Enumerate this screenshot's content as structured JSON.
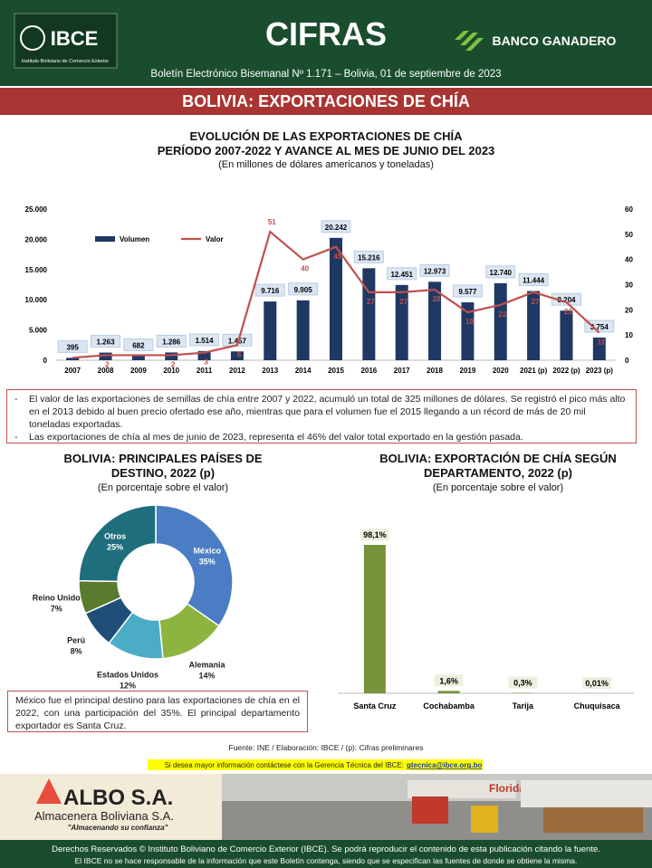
{
  "header": {
    "logo": "IBCE",
    "logo_caption": "Instituto Boliviano de Comercio Exterior",
    "title": "CIFRAS",
    "sponsor": "BANCO GANADERO",
    "subtitle": "Boletín Electrónico Bisemanal Nº 1.171 – Bolivia, 01 de septiembre de 2023",
    "banner": "BOLIVIA: EXPORTACIONES DE CHÍA"
  },
  "chart_data": [
    {
      "type": "combo",
      "title": [
        "EVOLUCIÓN DE LAS EXPORTACIONES DE CHÍA",
        "PERÍODO 2007-2022 Y AVANCE AL MES DE JUNIO DEL 2023"
      ],
      "subtitle": "(En millones de dólares americanos y toneladas)",
      "categories": [
        "2007",
        "2008",
        "2009",
        "2010",
        "2011",
        "2012",
        "2013",
        "2014",
        "2015",
        "2016",
        "2017",
        "2018",
        "2019",
        "2020",
        "2021 (p)",
        "2022 (p)",
        "2023 (p)"
      ],
      "series": [
        {
          "name": "Volumen",
          "color": "#1f3864",
          "kind": "bar",
          "values": [
            395,
            1263,
            682,
            1286,
            1514,
            1457,
            9716,
            9905,
            20242,
            15216,
            12451,
            12973,
            9577,
            12740,
            11444,
            8204,
            3754
          ],
          "value_labels": [
            "395",
            "1.263",
            "682",
            "1.286",
            "1.514",
            "1.457",
            "9.716",
            "9.905",
            "20.242",
            "15.216",
            "12.451",
            "12.973",
            "9.577",
            "12.740",
            "11.444",
            "8.204",
            "3.754"
          ]
        },
        {
          "name": "Valor",
          "color": "#c0504d",
          "kind": "line",
          "axis": "y2",
          "values": [
            1,
            2,
            2,
            2,
            3,
            6,
            51,
            40,
            45,
            27,
            27,
            28,
            19,
            22,
            27,
            23,
            11
          ],
          "value_labels": [
            null,
            "2",
            null,
            "2",
            "3",
            "6",
            "51",
            "40",
            "45",
            "27",
            "27",
            "28",
            "19",
            "22",
            "27",
            "23",
            "11"
          ]
        }
      ],
      "ylim": [
        0,
        25000
      ],
      "yticks": [
        0,
        {
          "value": 5000,
          "label": "5.000"
        },
        {
          "value": 10000,
          "label": "10.000"
        },
        {
          "value": 15000,
          "label": "15.000"
        },
        {
          "value": 20000,
          "label": "20.000"
        },
        {
          "value": 25000,
          "label": "25.000"
        }
      ],
      "y2lim": [
        0,
        60
      ],
      "y2ticks": [
        0,
        10,
        20,
        30,
        40,
        50,
        60
      ],
      "legend": "top-left"
    },
    {
      "type": "donut",
      "title": "BOLIVIA: PRINCIPALES PAÍSES DE DESTINO, 2022 (p)",
      "subtitle": "(En porcentaje sobre el valor)",
      "categories": [
        "México",
        "Alemania",
        "Estados Unidos",
        "Perú",
        "Reino Unido",
        "Otros"
      ],
      "values": [
        35,
        14,
        12,
        8,
        7,
        25
      ],
      "value_labels": [
        "35%",
        "14%",
        "12%",
        "8%",
        "7%",
        "25%"
      ],
      "colors": [
        "#4a7dc4",
        "#8db43e",
        "#4bacc6",
        "#1f4e79",
        "#5a7a2e",
        "#1f6e7e"
      ]
    },
    {
      "type": "bar",
      "title": "BOLIVIA: EXPORTACIÓN DE CHÍA SEGÚN DEPARTAMENTO, 2022 (p)",
      "subtitle": "(En porcentaje sobre el valor)",
      "categories": [
        "Santa Cruz",
        "Cochabamba",
        "Tarija",
        "Chuquisaca"
      ],
      "values": [
        98.1,
        1.6,
        0.3,
        0.01
      ],
      "value_labels": [
        "98,1%",
        "1,6%",
        "0,3%",
        "0,01%"
      ],
      "color": "#77933c"
    }
  ],
  "notes": [
    "El valor de las exportaciones de semillas de chía entre 2007 y 2022, acumuló un total de 325 millones de dólares. Se registró el pico más alto en el 2013 debido al buen precio ofertado ese año, mientras que para el volumen fue el 2015 llegando a un récord de más de 20 mil toneladas exportadas.",
    "Las exportaciones de chía al mes de junio de 2023, representa el 46% del valor total exportado en la gestión pasada."
  ],
  "summary": "México fue el principal destino para las exportaciones de chía en el 2022, con una participación del 35%. El principal departamento exportador es Santa Cruz.",
  "source": "Fuente: INE / Elaboración: IBCE / (p): Cifras preliminares",
  "contact": {
    "text": "Si desea mayor información contáctese con la Gerencia Técnica del IBCE:",
    "email": "gtecnica@ibce.org.bo"
  },
  "ad": {
    "brand": "ALBO S.A.",
    "company": "Almacenera Boliviana S.A.",
    "slogan": "\"Almacenando su confianza\"",
    "sign": "Florida"
  },
  "footer": [
    "Derechos Reservados © Instituto Boliviano de Comercio Exterior (IBCE). Se podrá reproducir el contenido de esta publicación citando la fuente.",
    "El IBCE no se hace responsable de la información que este Boletín contenga, siendo que se especifican las fuentes de donde se obtiene la misma."
  ]
}
